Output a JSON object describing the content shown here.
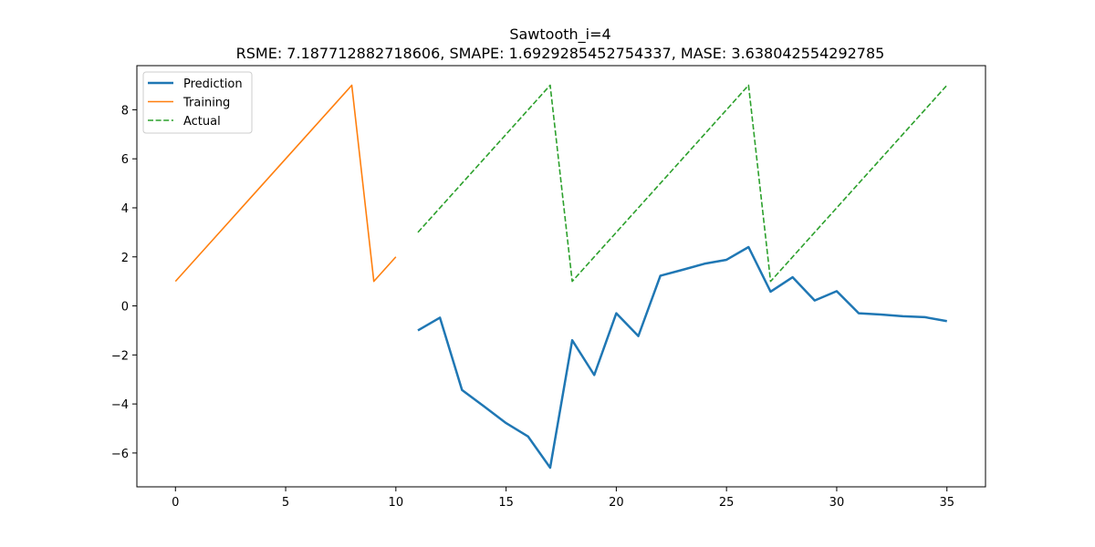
{
  "chart_data": {
    "type": "line",
    "title": "Sawtooth_i=4",
    "subtitle": "RSME: 7.187712882718606, SMAPE: 1.6929285452754337, MASE: 3.638042554292785",
    "xlabel": "",
    "ylabel": "",
    "xlim": [
      -1.75,
      36.75
    ],
    "ylim": [
      -7.38,
      9.8
    ],
    "xticks": [
      0,
      5,
      10,
      15,
      20,
      25,
      30,
      35
    ],
    "yticks": [
      -6,
      -4,
      -2,
      0,
      2,
      4,
      6,
      8
    ],
    "grid": false,
    "legend_position": "top-left",
    "series": [
      {
        "name": "Prediction",
        "color": "#1f77b4",
        "style": "solid",
        "x": [
          11,
          12,
          13,
          14,
          15,
          16,
          17,
          18,
          19,
          20,
          21,
          22,
          23,
          24,
          25,
          26,
          27,
          28,
          29,
          30,
          31,
          32,
          33,
          34,
          35
        ],
        "y": [
          -1.0,
          -0.48,
          -3.43,
          -4.1,
          -4.78,
          -5.33,
          -6.6,
          -1.4,
          -2.82,
          -0.3,
          -1.23,
          1.23,
          1.47,
          1.72,
          1.88,
          2.4,
          0.58,
          1.17,
          0.22,
          0.6,
          -0.3,
          -0.35,
          -0.42,
          -0.46,
          -0.62
        ]
      },
      {
        "name": "Training",
        "color": "#ff7f0e",
        "style": "solid",
        "x": [
          0,
          1,
          2,
          3,
          4,
          5,
          6,
          7,
          8,
          9,
          10
        ],
        "y": [
          1,
          2,
          3,
          4,
          5,
          6,
          7,
          8,
          9,
          1,
          2
        ]
      },
      {
        "name": "Actual",
        "color": "#2ca02c",
        "style": "dashed",
        "x": [
          11,
          12,
          13,
          14,
          15,
          16,
          17,
          18,
          19,
          20,
          21,
          22,
          23,
          24,
          25,
          26,
          27,
          28,
          29,
          30,
          31,
          32,
          33,
          34,
          35
        ],
        "y": [
          3,
          4,
          5,
          6,
          7,
          8,
          9,
          1,
          2,
          3,
          4,
          5,
          6,
          7,
          8,
          9,
          1,
          2,
          3,
          4,
          5,
          6,
          7,
          8,
          9
        ]
      }
    ]
  }
}
